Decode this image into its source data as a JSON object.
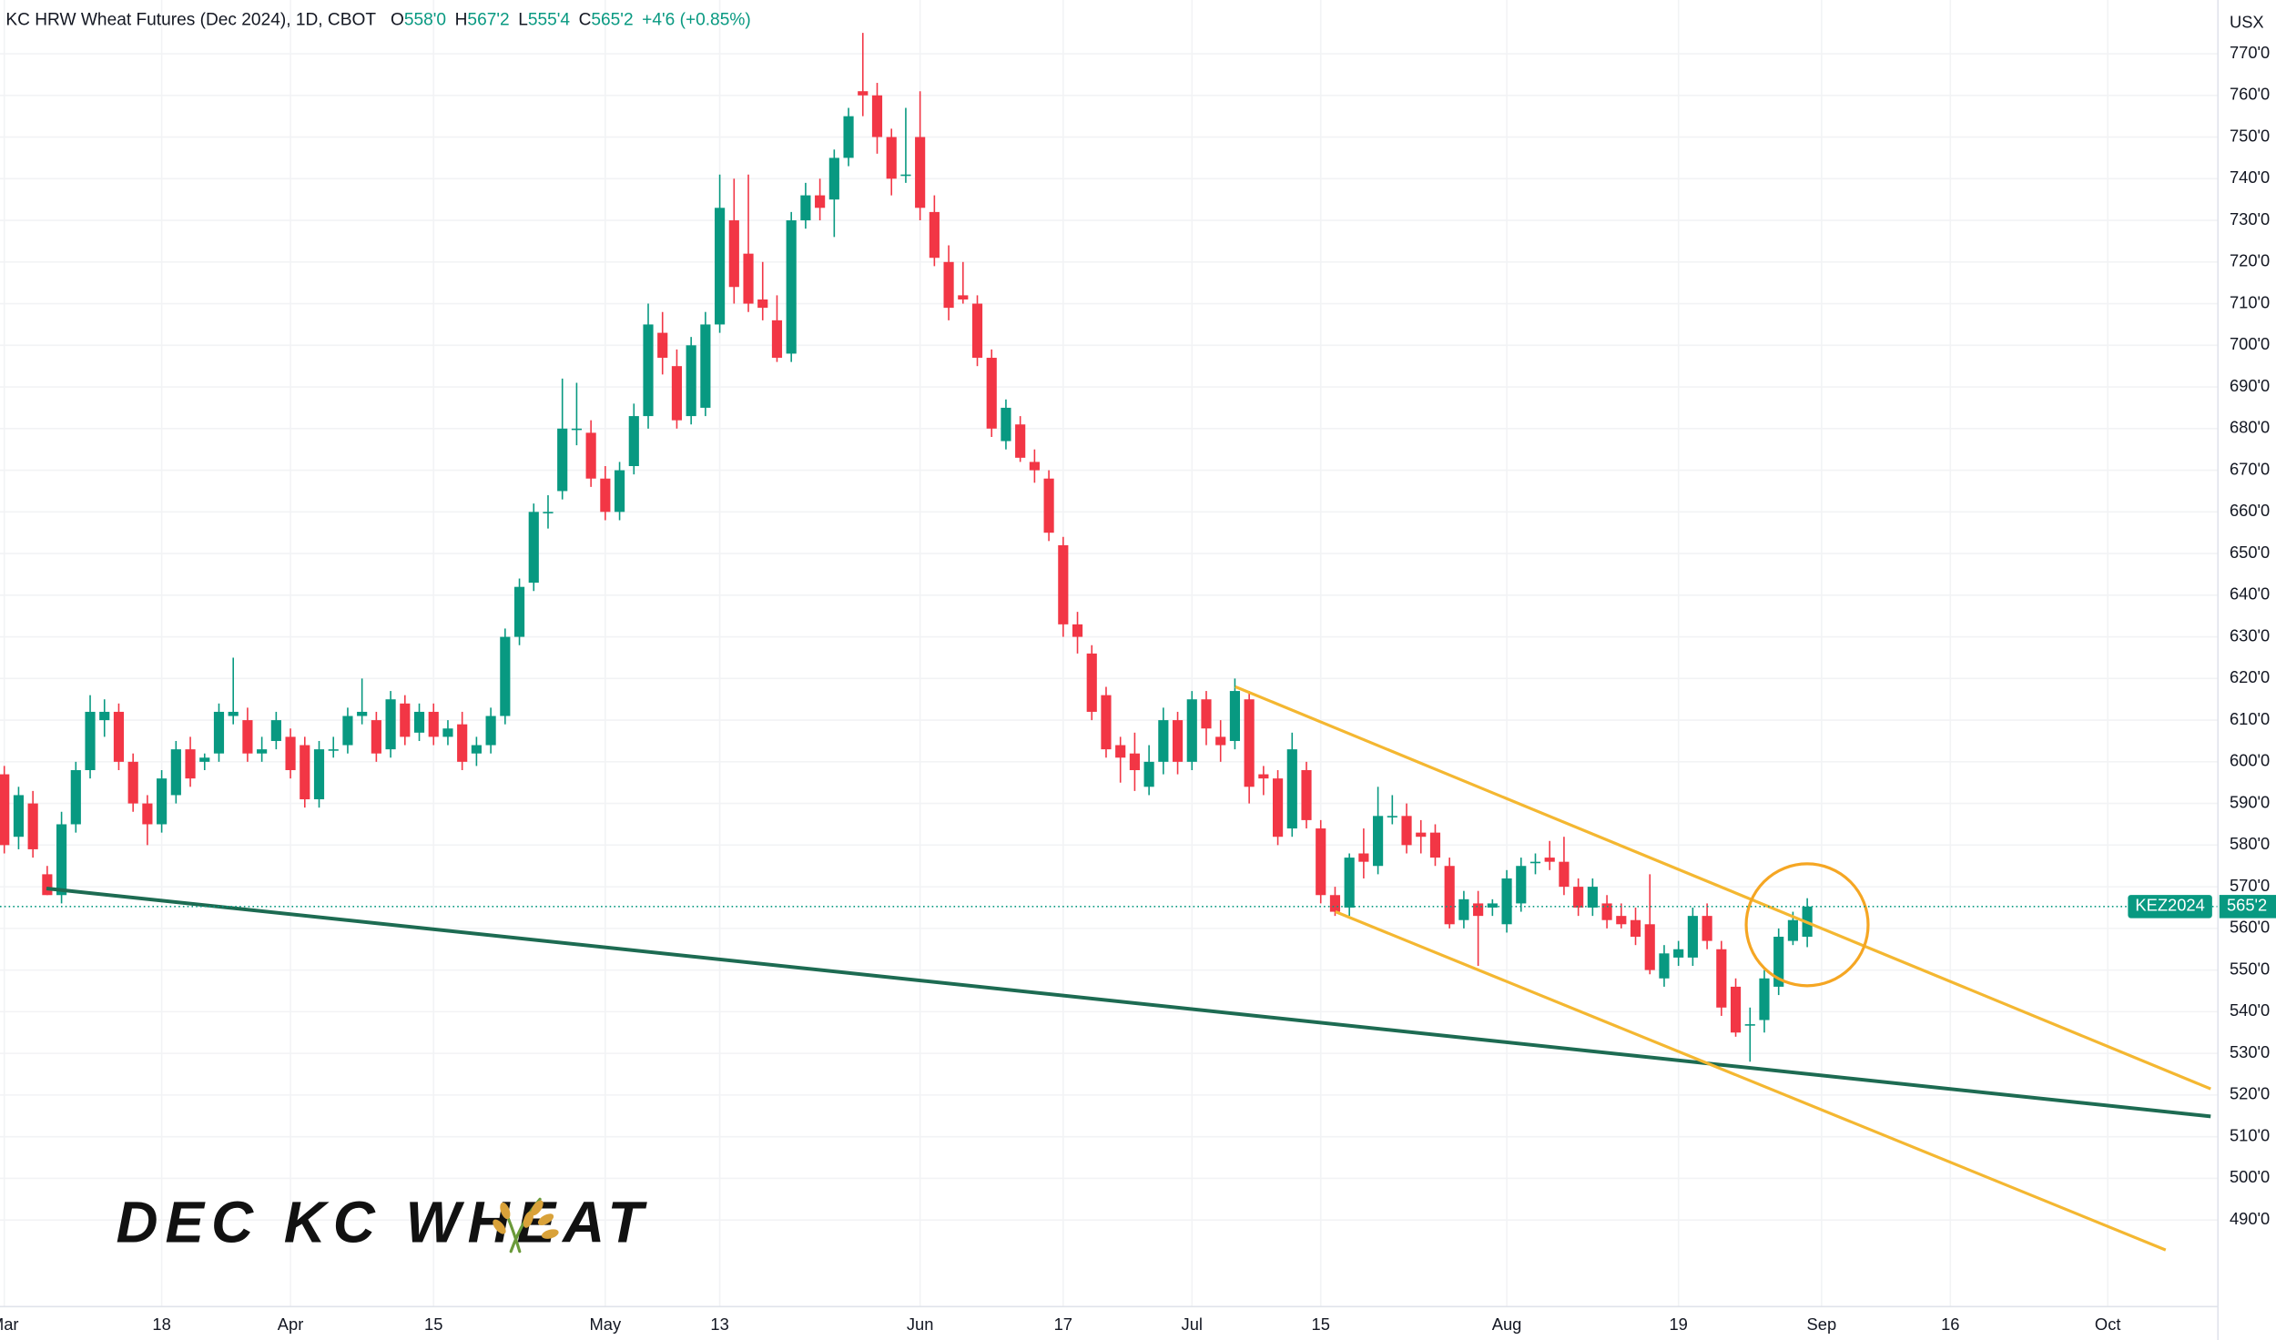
{
  "chart_data": {
    "type": "candlestick",
    "header": {
      "title": "KC HRW Wheat Futures (Dec 2024), 1D, CBOT",
      "open_key": "O",
      "open": "558'0",
      "high_key": "H",
      "high": "567'2",
      "low_key": "L",
      "low": "555'4",
      "close_key": "C",
      "close": "565'2",
      "change": "+4'6 (+0.85%)"
    },
    "currency": "USX",
    "annotation": "DEC KC WHEAT",
    "price_label": {
      "symbol": "KEZ2024",
      "value": "565'2"
    },
    "up_color": "#089981",
    "down_color": "#f23645",
    "xlim": [
      -0.3,
      154.7
    ],
    "xticks": [
      {
        "value": 0,
        "label": "Mar"
      },
      {
        "value": 11,
        "label": "18"
      },
      {
        "value": 20,
        "label": "Apr"
      },
      {
        "value": 30,
        "label": "15"
      },
      {
        "value": 42,
        "label": "May"
      },
      {
        "value": 50,
        "label": "13"
      },
      {
        "value": 64,
        "label": "Jun"
      },
      {
        "value": 74,
        "label": "17"
      },
      {
        "value": 83,
        "label": "Jul"
      },
      {
        "value": 92,
        "label": "15"
      },
      {
        "value": 105,
        "label": "Aug"
      },
      {
        "value": 117,
        "label": "19"
      },
      {
        "value": 127,
        "label": "Sep"
      },
      {
        "value": 136,
        "label": "16"
      },
      {
        "value": 147,
        "label": "Oct"
      }
    ],
    "ylim": [
      469.2,
      782.9
    ],
    "yticks": [
      {
        "value": 490,
        "label": "490'0"
      },
      {
        "value": 500,
        "label": "500'0"
      },
      {
        "value": 510,
        "label": "510'0"
      },
      {
        "value": 520,
        "label": "520'0"
      },
      {
        "value": 530,
        "label": "530'0"
      },
      {
        "value": 540,
        "label": "540'0"
      },
      {
        "value": 550,
        "label": "550'0"
      },
      {
        "value": 560,
        "label": "560'0"
      },
      {
        "value": 570,
        "label": "570'0"
      },
      {
        "value": 580,
        "label": "580'0"
      },
      {
        "value": 590,
        "label": "590'0"
      },
      {
        "value": 600,
        "label": "600'0"
      },
      {
        "value": 610,
        "label": "610'0"
      },
      {
        "value": 620,
        "label": "620'0"
      },
      {
        "value": 630,
        "label": "630'0"
      },
      {
        "value": 640,
        "label": "640'0"
      },
      {
        "value": 650,
        "label": "650'0"
      },
      {
        "value": 660,
        "label": "660'0"
      },
      {
        "value": 670,
        "label": "670'0"
      },
      {
        "value": 680,
        "label": "680'0"
      },
      {
        "value": 690,
        "label": "690'0"
      },
      {
        "value": 700,
        "label": "700'0"
      },
      {
        "value": 710,
        "label": "710'0"
      },
      {
        "value": 720,
        "label": "720'0"
      },
      {
        "value": 730,
        "label": "730'0"
      },
      {
        "value": 740,
        "label": "740'0"
      },
      {
        "value": 750,
        "label": "750'0"
      },
      {
        "value": 760,
        "label": "760'0"
      },
      {
        "value": 770,
        "label": "770'0"
      }
    ],
    "grid": true,
    "ohlc": [
      [
        597,
        599,
        578,
        580
      ],
      [
        582,
        594,
        579,
        592
      ],
      [
        590,
        593,
        577,
        579
      ],
      [
        573,
        575,
        568,
        568
      ],
      [
        568,
        588,
        566,
        585
      ],
      [
        585,
        600,
        583,
        598
      ],
      [
        598,
        616,
        596,
        612
      ],
      [
        610,
        615,
        606,
        612
      ],
      [
        612,
        614,
        598,
        600
      ],
      [
        600,
        602,
        588,
        590
      ],
      [
        590,
        592,
        580,
        585
      ],
      [
        585,
        598,
        583,
        596
      ],
      [
        592,
        605,
        590,
        603
      ],
      [
        603,
        606,
        594,
        596
      ],
      [
        600,
        602,
        598,
        601
      ],
      [
        602,
        614,
        600,
        612
      ],
      [
        611,
        625,
        609,
        612
      ],
      [
        610,
        613,
        600,
        602
      ],
      [
        602,
        606,
        600,
        603
      ],
      [
        605,
        612,
        603,
        610
      ],
      [
        606,
        608,
        596,
        598
      ],
      [
        604,
        606,
        589,
        591
      ],
      [
        591,
        605,
        589,
        603
      ],
      [
        603,
        606,
        601,
        603
      ],
      [
        604,
        613,
        602,
        611
      ],
      [
        611,
        620,
        609,
        612
      ],
      [
        610,
        612,
        600,
        602
      ],
      [
        603,
        617,
        601,
        615
      ],
      [
        614,
        616,
        604,
        606
      ],
      [
        607,
        614,
        605,
        612
      ],
      [
        612,
        614,
        604,
        606
      ],
      [
        606,
        610,
        604,
        608
      ],
      [
        609,
        612,
        598,
        600
      ],
      [
        602,
        606,
        599,
        604
      ],
      [
        604,
        613,
        602,
        611
      ],
      [
        611,
        632,
        609,
        630
      ],
      [
        630,
        644,
        628,
        642
      ],
      [
        643,
        662,
        641,
        660
      ],
      [
        660,
        664,
        656,
        660
      ],
      [
        665,
        692,
        663,
        680
      ],
      [
        680,
        691,
        676,
        680
      ],
      [
        679,
        682,
        666,
        668
      ],
      [
        668,
        671,
        658,
        660
      ],
      [
        660,
        672,
        658,
        670
      ],
      [
        671,
        686,
        669,
        683
      ],
      [
        683,
        710,
        680,
        705
      ],
      [
        703,
        708,
        693,
        697
      ],
      [
        695,
        699,
        680,
        682
      ],
      [
        683,
        702,
        681,
        700
      ],
      [
        685,
        708,
        683,
        705
      ],
      [
        705,
        741,
        703,
        733
      ],
      [
        730,
        740,
        710,
        714
      ],
      [
        722,
        741,
        708,
        710
      ],
      [
        711,
        720,
        706,
        709
      ],
      [
        706,
        712,
        696,
        697
      ],
      [
        698,
        732,
        696,
        730
      ],
      [
        730,
        739,
        728,
        736
      ],
      [
        736,
        740,
        730,
        733
      ],
      [
        735,
        747,
        726,
        745
      ],
      [
        745,
        757,
        743,
        755
      ],
      [
        761,
        775,
        755,
        760
      ],
      [
        760,
        763,
        746,
        750
      ],
      [
        750,
        752,
        736,
        740
      ],
      [
        741,
        757,
        739,
        741
      ],
      [
        750,
        761,
        730,
        733
      ],
      [
        732,
        736,
        719,
        721
      ],
      [
        720,
        724,
        706,
        709
      ],
      [
        712,
        720,
        710,
        711
      ],
      [
        710,
        712,
        695,
        697
      ],
      [
        697,
        699,
        678,
        680
      ],
      [
        677,
        687,
        675,
        685
      ],
      [
        681,
        683,
        672,
        673
      ],
      [
        672,
        675,
        667,
        670
      ],
      [
        668,
        670,
        653,
        655
      ],
      [
        652,
        654,
        630,
        633
      ],
      [
        633,
        636,
        626,
        630
      ],
      [
        626,
        628,
        610,
        612
      ],
      [
        616,
        618,
        601,
        603
      ],
      [
        604,
        606,
        595,
        601
      ],
      [
        602,
        607,
        593,
        598
      ],
      [
        594,
        604,
        592,
        600
      ],
      [
        600,
        613,
        597,
        610
      ],
      [
        610,
        612,
        597,
        600
      ],
      [
        600,
        617,
        598,
        615
      ],
      [
        615,
        617,
        604,
        608
      ],
      [
        606,
        610,
        600,
        604
      ],
      [
        605,
        620,
        603,
        617
      ],
      [
        615,
        617,
        590,
        594
      ],
      [
        597,
        599,
        592,
        596
      ],
      [
        596,
        598,
        580,
        582
      ],
      [
        584,
        607,
        582,
        603
      ],
      [
        598,
        600,
        584,
        586
      ],
      [
        584,
        586,
        566,
        568
      ],
      [
        568,
        570,
        563,
        564
      ],
      [
        565,
        578,
        563,
        577
      ],
      [
        578,
        584,
        572,
        576
      ],
      [
        575,
        594,
        573,
        587
      ],
      [
        587,
        592,
        585,
        587
      ],
      [
        587,
        590,
        578,
        580
      ],
      [
        583,
        586,
        578,
        582
      ],
      [
        583,
        585,
        575,
        577
      ],
      [
        575,
        577,
        560,
        561
      ],
      [
        562,
        569,
        560,
        567
      ],
      [
        566,
        569,
        551,
        563
      ],
      [
        565,
        567,
        563,
        566
      ],
      [
        561,
        574,
        559,
        572
      ],
      [
        566,
        577,
        564,
        575
      ],
      [
        576,
        578,
        573,
        576
      ],
      [
        577,
        581,
        574,
        576
      ],
      [
        576,
        582,
        568,
        570
      ],
      [
        570,
        572,
        563,
        565
      ],
      [
        565,
        572,
        563,
        570
      ],
      [
        566,
        568,
        560,
        562
      ],
      [
        563,
        566,
        560,
        561
      ],
      [
        562,
        565,
        556,
        558
      ],
      [
        561,
        573,
        549,
        550
      ],
      [
        548,
        556,
        546,
        554
      ],
      [
        553,
        557,
        551,
        555
      ],
      [
        553,
        565,
        551,
        563
      ],
      [
        563,
        566,
        555,
        557
      ],
      [
        555,
        557,
        539,
        541
      ],
      [
        546,
        548,
        534,
        535
      ],
      [
        537,
        541,
        528,
        537
      ],
      [
        538,
        550,
        535,
        548
      ],
      [
        546,
        560,
        544,
        558
      ],
      [
        557,
        564,
        556,
        562
      ],
      [
        558,
        567.25,
        555.5,
        565.25
      ]
    ]
  }
}
